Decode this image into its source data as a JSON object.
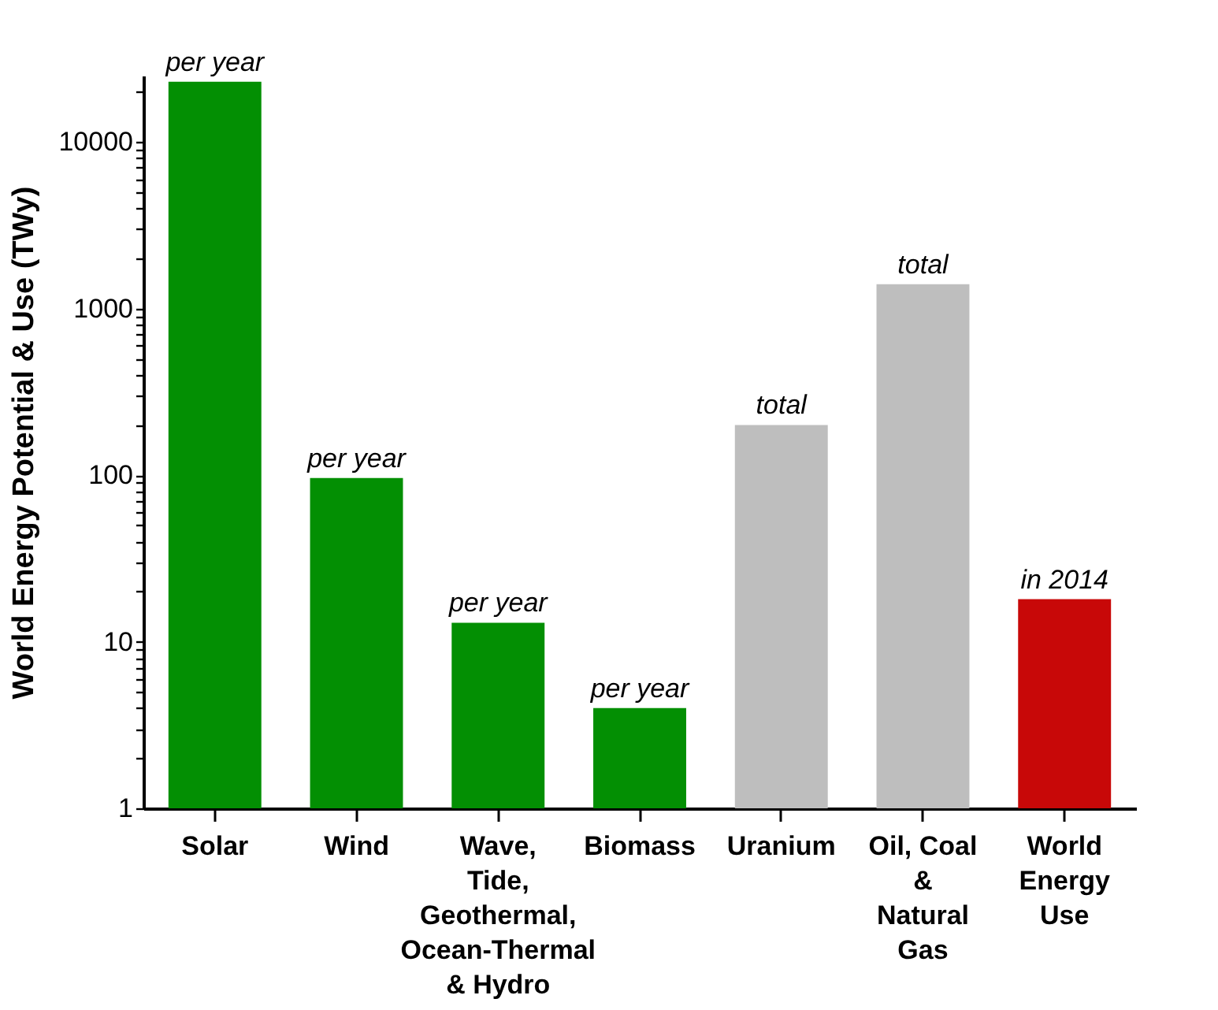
{
  "chart_data": {
    "type": "bar",
    "ylabel": "World Energy Potential & Use  (TWy)",
    "categories": [
      "Solar",
      "Wind",
      "Wave,\nTide,\nGeothermal,\nOcean-Thermal\n& Hydro",
      "Biomass",
      "Uranium",
      "Oil, Coal\n&\nNatural\nGas",
      "World\nEnergy\nUse"
    ],
    "values": [
      23000,
      96,
      13,
      4,
      200,
      1400,
      18
    ],
    "colors": [
      "#038f03",
      "#038f03",
      "#038f03",
      "#038f03",
      "#bebebe",
      "#bebebe",
      "#c80808"
    ],
    "log": "y",
    "ylim": [
      1,
      25000
    ],
    "yticks": [
      1,
      {
        "value": 2,
        "label": null
      },
      {
        "value": 3,
        "label": null
      },
      {
        "value": 4,
        "label": null
      },
      {
        "value": 5,
        "label": null
      },
      {
        "value": 6,
        "label": null
      },
      {
        "value": 7,
        "label": null
      },
      {
        "value": 8,
        "label": null
      },
      {
        "value": 9,
        "label": null
      },
      10,
      {
        "value": 20,
        "label": null
      },
      {
        "value": 30,
        "label": null
      },
      {
        "value": 40,
        "label": null
      },
      {
        "value": 50,
        "label": null
      },
      {
        "value": 60,
        "label": null
      },
      {
        "value": 70,
        "label": null
      },
      {
        "value": 80,
        "label": null
      },
      {
        "value": 90,
        "label": null
      },
      100,
      {
        "value": 200,
        "label": null
      },
      {
        "value": 300,
        "label": null
      },
      {
        "value": 400,
        "label": null
      },
      {
        "value": 500,
        "label": null
      },
      {
        "value": 600,
        "label": null
      },
      {
        "value": 700,
        "label": null
      },
      {
        "value": 800,
        "label": null
      },
      {
        "value": 900,
        "label": null
      },
      1000,
      {
        "value": 2000,
        "label": null
      },
      {
        "value": 3000,
        "label": null
      },
      {
        "value": 4000,
        "label": null
      },
      {
        "value": 5000,
        "label": null
      },
      {
        "value": 6000,
        "label": null
      },
      {
        "value": 7000,
        "label": null
      },
      {
        "value": 8000,
        "label": null
      },
      {
        "value": 9000,
        "label": null
      },
      10000,
      {
        "value": 20000,
        "label": null
      }
    ],
    "annotations": [
      {
        "text": "per year",
        "x": "Solar",
        "y": 23000
      },
      {
        "text": "per year",
        "x": "Wind",
        "y": 96
      },
      {
        "text": "per year",
        "x": "Wave,\nTide,\nGeothermal,\nOcean-Thermal\n& Hydro",
        "y": 13
      },
      {
        "text": "per year",
        "x": "Biomass",
        "y": 4
      },
      {
        "text": "total",
        "x": "Uranium",
        "y": 200
      },
      {
        "text": "total",
        "x": "Oil, Coal\n&\nNatural\nGas",
        "y": 1400
      },
      {
        "text": "in 2014",
        "x": "World\nEnergy\nUse",
        "y": 18
      }
    ],
    "grid": false
  }
}
